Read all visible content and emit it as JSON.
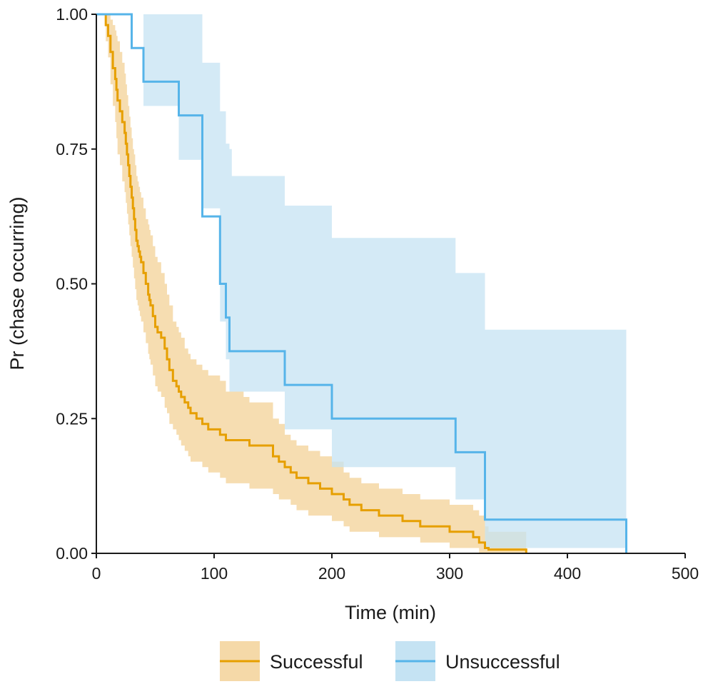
{
  "chart_data": {
    "type": "line",
    "title": "",
    "xlabel": "Time (min)",
    "ylabel": "Pr (chase occurring)",
    "xlim": [
      0,
      500
    ],
    "ylim": [
      0,
      1
    ],
    "x_ticks": [
      "0",
      "100",
      "200",
      "300",
      "400",
      "500"
    ],
    "y_ticks": [
      "0.00",
      "0.25",
      "0.50",
      "0.75",
      "1.00"
    ],
    "grid": false,
    "legend_position": "bottom",
    "colors": {
      "successful_line": "#E69F00",
      "successful_band": "#F5D9A8",
      "unsuccessful_line": "#56B4E9",
      "unsuccessful_band": "#C5E3F3"
    },
    "series": [
      {
        "name": "Successful",
        "x": [
          0,
          8,
          10,
          12,
          14,
          16,
          17,
          18,
          20,
          22,
          24,
          25,
          26,
          27,
          28,
          29,
          30,
          31,
          32,
          33,
          34,
          35,
          36,
          37,
          38,
          40,
          42,
          44,
          45,
          46,
          48,
          50,
          52,
          55,
          58,
          60,
          62,
          65,
          68,
          70,
          72,
          75,
          78,
          80,
          85,
          90,
          95,
          100,
          105,
          110,
          125,
          130,
          140,
          150,
          155,
          160,
          165,
          170,
          180,
          190,
          200,
          210,
          215,
          225,
          240,
          260,
          275,
          285,
          300,
          320,
          325,
          330,
          333,
          365
        ],
        "y": [
          1.0,
          0.98,
          0.96,
          0.93,
          0.9,
          0.88,
          0.86,
          0.84,
          0.82,
          0.8,
          0.78,
          0.76,
          0.74,
          0.72,
          0.7,
          0.68,
          0.66,
          0.64,
          0.62,
          0.6,
          0.58,
          0.57,
          0.56,
          0.55,
          0.54,
          0.52,
          0.5,
          0.48,
          0.47,
          0.46,
          0.44,
          0.42,
          0.41,
          0.4,
          0.38,
          0.36,
          0.34,
          0.32,
          0.31,
          0.3,
          0.29,
          0.28,
          0.27,
          0.26,
          0.25,
          0.24,
          0.23,
          0.23,
          0.22,
          0.21,
          0.21,
          0.2,
          0.2,
          0.18,
          0.17,
          0.16,
          0.15,
          0.14,
          0.13,
          0.12,
          0.11,
          0.1,
          0.09,
          0.08,
          0.07,
          0.06,
          0.05,
          0.05,
          0.04,
          0.03,
          0.02,
          0.01,
          0.007,
          0.0
        ],
        "ci_upper": [
          1.0,
          1.0,
          1.0,
          0.99,
          0.98,
          0.97,
          0.96,
          0.95,
          0.93,
          0.91,
          0.89,
          0.87,
          0.85,
          0.83,
          0.81,
          0.79,
          0.77,
          0.75,
          0.74,
          0.72,
          0.7,
          0.69,
          0.68,
          0.67,
          0.66,
          0.64,
          0.62,
          0.61,
          0.6,
          0.59,
          0.57,
          0.55,
          0.54,
          0.52,
          0.5,
          0.48,
          0.46,
          0.43,
          0.42,
          0.41,
          0.4,
          0.38,
          0.37,
          0.36,
          0.35,
          0.34,
          0.33,
          0.33,
          0.32,
          0.3,
          0.29,
          0.28,
          0.28,
          0.25,
          0.24,
          0.22,
          0.21,
          0.2,
          0.19,
          0.18,
          0.17,
          0.15,
          0.14,
          0.13,
          0.12,
          0.11,
          0.1,
          0.1,
          0.09,
          0.08,
          0.07,
          0.05,
          0.04,
          0.0
        ],
        "ci_lower": [
          1.0,
          0.95,
          0.92,
          0.87,
          0.83,
          0.8,
          0.77,
          0.74,
          0.72,
          0.69,
          0.67,
          0.65,
          0.63,
          0.61,
          0.59,
          0.57,
          0.55,
          0.53,
          0.51,
          0.49,
          0.47,
          0.46,
          0.45,
          0.44,
          0.43,
          0.41,
          0.39,
          0.37,
          0.36,
          0.35,
          0.33,
          0.31,
          0.3,
          0.29,
          0.27,
          0.26,
          0.24,
          0.23,
          0.22,
          0.21,
          0.2,
          0.19,
          0.18,
          0.17,
          0.17,
          0.16,
          0.15,
          0.15,
          0.14,
          0.13,
          0.13,
          0.12,
          0.12,
          0.11,
          0.1,
          0.1,
          0.09,
          0.08,
          0.07,
          0.07,
          0.06,
          0.05,
          0.04,
          0.04,
          0.03,
          0.03,
          0.02,
          0.02,
          0.01,
          0.01,
          0.0,
          0.0,
          0.0,
          0.0
        ]
      },
      {
        "name": "Unsuccessful",
        "x": [
          0,
          30,
          40,
          70,
          90,
          105,
          110,
          113,
          115,
          160,
          200,
          305,
          330,
          450
        ],
        "y": [
          1.0,
          0.9375,
          0.875,
          0.8125,
          0.625,
          0.5,
          0.4375,
          0.375,
          0.375,
          0.3125,
          0.25,
          0.1875,
          0.0625,
          0.0
        ],
        "ci_upper": [
          1.0,
          1.0,
          1.0,
          1.0,
          0.91,
          0.82,
          0.76,
          0.75,
          0.7,
          0.645,
          0.585,
          0.52,
          0.415,
          0.415
        ],
        "ci_lower": [
          1.0,
          1.0,
          0.83,
          0.73,
          0.64,
          0.43,
          0.36,
          0.3,
          0.3,
          0.23,
          0.16,
          0.1,
          0.01,
          0.01
        ]
      }
    ]
  }
}
